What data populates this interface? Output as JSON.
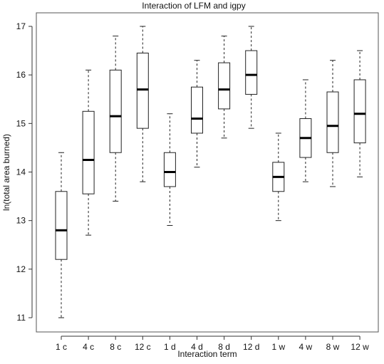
{
  "chart_data": {
    "type": "boxplot",
    "title": "Interaction of LFM and igpy",
    "xlabel": "Interaction term",
    "ylabel": "ln(total area burned)",
    "ylim": [
      10.85,
      17.15
    ],
    "yticks": [
      11,
      12,
      13,
      14,
      15,
      16,
      17
    ],
    "grid": false,
    "categories": [
      "1 c",
      "4 c",
      "8 c",
      "12 c",
      "1 d",
      "4 d",
      "8 d",
      "12 d",
      "1 w",
      "4 w",
      "8 w",
      "12 w"
    ],
    "boxes": [
      {
        "min": 11.0,
        "q1": 12.2,
        "median": 12.8,
        "q3": 13.6,
        "max": 14.4
      },
      {
        "min": 12.7,
        "q1": 13.55,
        "median": 14.25,
        "q3": 15.25,
        "max": 16.1
      },
      {
        "min": 13.4,
        "q1": 14.4,
        "median": 15.15,
        "q3": 16.1,
        "max": 16.8
      },
      {
        "min": 13.8,
        "q1": 14.9,
        "median": 15.7,
        "q3": 16.45,
        "max": 17.0
      },
      {
        "min": 12.9,
        "q1": 13.7,
        "median": 14.0,
        "q3": 14.4,
        "max": 15.2
      },
      {
        "min": 14.1,
        "q1": 14.8,
        "median": 15.1,
        "q3": 15.75,
        "max": 16.3
      },
      {
        "min": 14.7,
        "q1": 15.3,
        "median": 15.7,
        "q3": 16.25,
        "max": 16.8
      },
      {
        "min": 14.9,
        "q1": 15.6,
        "median": 16.0,
        "q3": 16.5,
        "max": 17.0
      },
      {
        "min": 13.0,
        "q1": 13.6,
        "median": 13.9,
        "q3": 14.2,
        "max": 14.8
      },
      {
        "min": 13.8,
        "q1": 14.3,
        "median": 14.7,
        "q3": 15.1,
        "max": 15.9
      },
      {
        "min": 13.7,
        "q1": 14.4,
        "median": 14.95,
        "q3": 15.65,
        "max": 16.3
      },
      {
        "min": 13.9,
        "q1": 14.6,
        "median": 15.2,
        "q3": 15.9,
        "max": 16.5
      }
    ]
  }
}
